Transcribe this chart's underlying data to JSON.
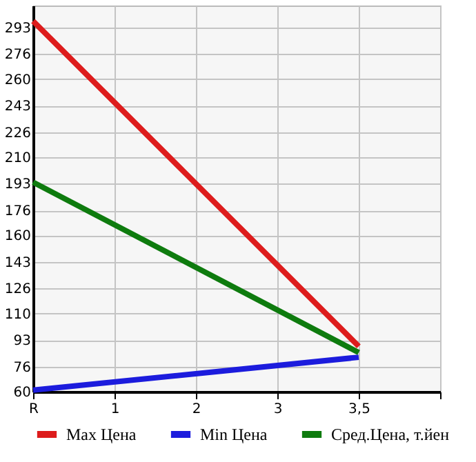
{
  "chart_data": {
    "type": "line",
    "categories": [
      "R",
      "1",
      "2",
      "3",
      "3,5",
      null
    ],
    "series": [
      {
        "name": "Max Цена",
        "color": "#dd1c1c",
        "values": [
          297,
          null,
          null,
          null,
          89,
          null
        ]
      },
      {
        "name": "Min Цена",
        "color": "#1c1cdd",
        "values": [
          61,
          null,
          null,
          null,
          82,
          null
        ]
      },
      {
        "name": "Сред.Цена, т.йен",
        "color": "#0e7b0e",
        "values": [
          194,
          null,
          null,
          null,
          85,
          null
        ]
      }
    ],
    "ylim": [
      60,
      307
    ],
    "yticks": [
      60,
      76,
      93,
      110,
      126,
      143,
      160,
      176,
      193,
      210,
      226,
      243,
      260,
      276,
      293
    ],
    "grid": true,
    "legend": "bottom",
    "marker": "none",
    "line_style": "solid"
  }
}
